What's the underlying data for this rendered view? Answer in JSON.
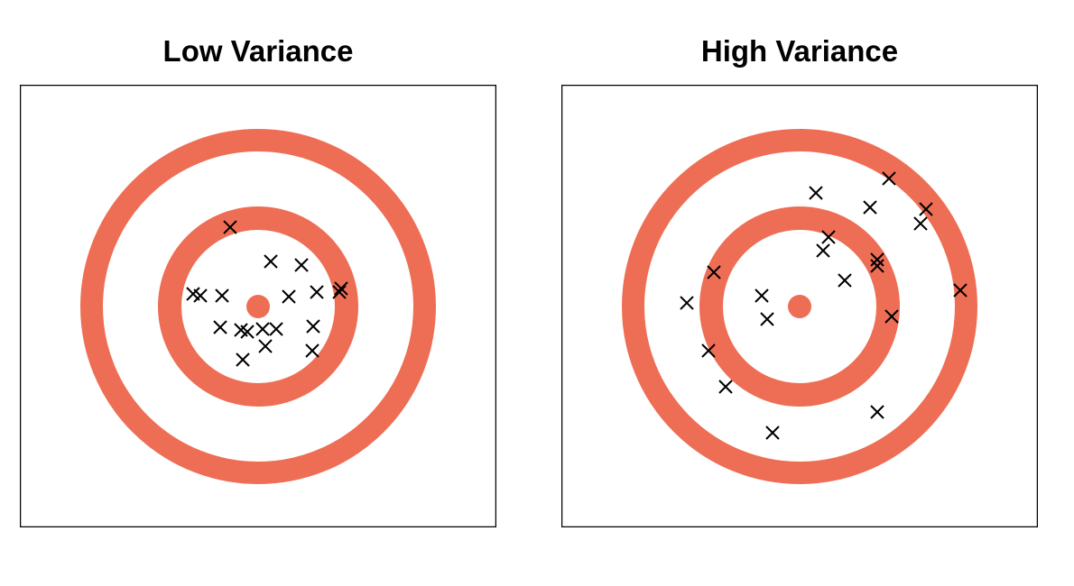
{
  "chart_data": [
    {
      "type": "scatter",
      "title": "Low Variance",
      "target_color": "#EE6E55",
      "marker": "x",
      "points": [
        [
          -0.31,
          0.88
        ],
        [
          0.14,
          0.5
        ],
        [
          0.48,
          0.46
        ],
        [
          -0.72,
          0.14
        ],
        [
          -0.64,
          0.12
        ],
        [
          -0.4,
          0.12
        ],
        [
          0.34,
          0.11
        ],
        [
          0.65,
          0.16
        ],
        [
          0.9,
          0.16
        ],
        [
          0.92,
          0.2
        ],
        [
          -0.42,
          -0.23
        ],
        [
          -0.19,
          -0.26
        ],
        [
          -0.12,
          -0.28
        ],
        [
          0.05,
          -0.25
        ],
        [
          0.2,
          -0.25
        ],
        [
          0.61,
          -0.22
        ],
        [
          0.6,
          -0.49
        ],
        [
          0.08,
          -0.44
        ],
        [
          -0.17,
          -0.59
        ]
      ]
    },
    {
      "type": "scatter",
      "title": "High Variance",
      "target_color": "#EE6E55",
      "marker": "x",
      "points": [
        [
          0.18,
          1.26
        ],
        [
          0.78,
          1.1
        ],
        [
          0.99,
          1.42
        ],
        [
          1.4,
          1.08
        ],
        [
          1.34,
          0.92
        ],
        [
          0.32,
          0.77
        ],
        [
          0.26,
          0.62
        ],
        [
          0.86,
          0.52
        ],
        [
          0.86,
          0.45
        ],
        [
          0.5,
          0.29
        ],
        [
          -0.95,
          0.38
        ],
        [
          1.78,
          0.18
        ],
        [
          -1.25,
          0.04
        ],
        [
          -0.42,
          0.12
        ],
        [
          -0.36,
          -0.14
        ],
        [
          1.02,
          -0.11
        ],
        [
          -1.01,
          -0.49
        ],
        [
          -0.82,
          -0.89
        ],
        [
          0.86,
          -1.17
        ],
        [
          -0.3,
          -1.4
        ]
      ]
    }
  ]
}
